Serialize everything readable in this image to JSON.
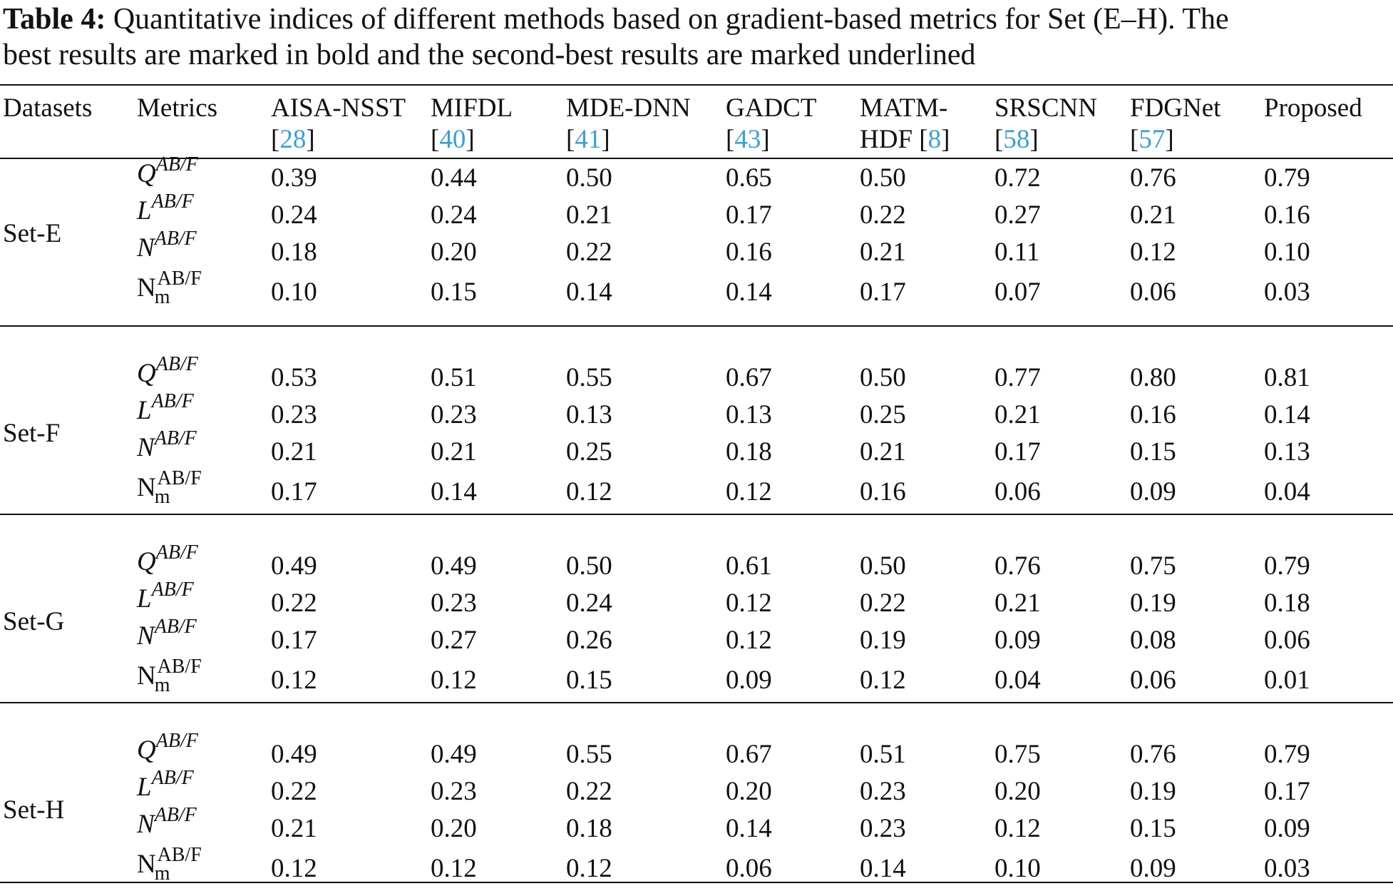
{
  "caption": {
    "label": "Table 4:",
    "text_line1": " Quantitative indices of different methods based on gradient-based metrics for Set (E–H). The",
    "text_line2": "best results are marked in bold and the second-best results are marked underlined"
  },
  "header": {
    "datasets": "Datasets",
    "metrics": "Metrics",
    "methods": [
      {
        "line1": "AISA-NSST",
        "cite": "28"
      },
      {
        "line1": "MIFDL",
        "cite": "40"
      },
      {
        "line1": "MDE-DNN",
        "cite": "41"
      },
      {
        "line1": "GADCT",
        "cite": "43"
      },
      {
        "line1": "MATM-",
        "line2": "HDF",
        "cite": "8"
      },
      {
        "line1": "SRSCNN",
        "cite": "58"
      },
      {
        "line1": "FDGNet",
        "cite": "57"
      },
      {
        "line1": "Proposed"
      }
    ]
  },
  "metric_labels": {
    "q": {
      "base": "Q",
      "sup": "AB/F"
    },
    "l": {
      "base": "L",
      "sup": "AB/F"
    },
    "n": {
      "base": "N",
      "sup": "AB/F"
    },
    "nm": {
      "base": "N",
      "sup": "AB/F",
      "sub": "m"
    }
  },
  "sets": [
    {
      "name": "Set-E",
      "rows": [
        [
          "0.39",
          "0.44",
          "0.50",
          "0.65",
          "0.50",
          "0.72",
          "0.76",
          "0.79"
        ],
        [
          "0.24",
          "0.24",
          "0.21",
          "0.17",
          "0.22",
          "0.27",
          "0.21",
          "0.16"
        ],
        [
          "0.18",
          "0.20",
          "0.22",
          "0.16",
          "0.21",
          "0.11",
          "0.12",
          "0.10"
        ],
        [
          "0.10",
          "0.15",
          "0.14",
          "0.14",
          "0.17",
          "0.07",
          "0.06",
          "0.03"
        ]
      ]
    },
    {
      "name": "Set-F",
      "rows": [
        [
          "0.53",
          "0.51",
          "0.55",
          "0.67",
          "0.50",
          "0.77",
          "0.80",
          "0.81"
        ],
        [
          "0.23",
          "0.23",
          "0.13",
          "0.13",
          "0.25",
          "0.21",
          "0.16",
          "0.14"
        ],
        [
          "0.21",
          "0.21",
          "0.25",
          "0.18",
          "0.21",
          "0.17",
          "0.15",
          "0.13"
        ],
        [
          "0.17",
          "0.14",
          "0.12",
          "0.12",
          "0.16",
          "0.06",
          "0.09",
          "0.04"
        ]
      ]
    },
    {
      "name": "Set-G",
      "rows": [
        [
          "0.49",
          "0.49",
          "0.50",
          "0.61",
          "0.50",
          "0.76",
          "0.75",
          "0.79"
        ],
        [
          "0.22",
          "0.23",
          "0.24",
          "0.12",
          "0.22",
          "0.21",
          "0.19",
          "0.18"
        ],
        [
          "0.17",
          "0.27",
          "0.26",
          "0.12",
          "0.19",
          "0.09",
          "0.08",
          "0.06"
        ],
        [
          "0.12",
          "0.12",
          "0.15",
          "0.09",
          "0.12",
          "0.04",
          "0.06",
          "0.01"
        ]
      ]
    },
    {
      "name": "Set-H",
      "rows": [
        [
          "0.49",
          "0.49",
          "0.55",
          "0.67",
          "0.51",
          "0.75",
          "0.76",
          "0.79"
        ],
        [
          "0.22",
          "0.23",
          "0.22",
          "0.20",
          "0.23",
          "0.20",
          "0.19",
          "0.17"
        ],
        [
          "0.21",
          "0.20",
          "0.18",
          "0.14",
          "0.23",
          "0.12",
          "0.15",
          "0.09"
        ],
        [
          "0.12",
          "0.12",
          "0.12",
          "0.06",
          "0.14",
          "0.10",
          "0.09",
          "0.03"
        ]
      ]
    }
  ]
}
